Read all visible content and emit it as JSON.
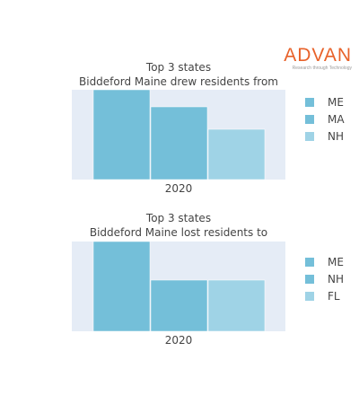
{
  "logo": {
    "text": "ADVAN",
    "tagline": "Research through Technology",
    "color": "#e8622a"
  },
  "chart_data": [
    {
      "type": "bar",
      "title_lines": [
        "Top 3 states",
        "Biddeford Maine drew residents from"
      ],
      "xlabel": "2020",
      "categories": [
        "2020"
      ],
      "series": [
        {
          "name": "ME",
          "values": [
            100
          ],
          "color": "#74bfd9"
        },
        {
          "name": "MA",
          "values": [
            81
          ],
          "color": "#74bfd9"
        },
        {
          "name": "NH",
          "values": [
            56
          ],
          "color": "#9fd3e6"
        }
      ],
      "ylim": [
        0,
        100
      ],
      "grid": false,
      "legend_position": "right"
    },
    {
      "type": "bar",
      "title_lines": [
        "Top 3 states",
        "Biddeford Maine lost residents to"
      ],
      "xlabel": "2020",
      "categories": [
        "2020"
      ],
      "series": [
        {
          "name": "ME",
          "values": [
            100
          ],
          "color": "#74bfd9"
        },
        {
          "name": "NH",
          "values": [
            57
          ],
          "color": "#74bfd9"
        },
        {
          "name": "FL",
          "values": [
            57
          ],
          "color": "#9fd3e6"
        }
      ],
      "ylim": [
        0,
        100
      ],
      "grid": false,
      "legend_position": "right"
    }
  ],
  "colors": {
    "plot_background": "#e5ecf6",
    "text": "#444444"
  }
}
